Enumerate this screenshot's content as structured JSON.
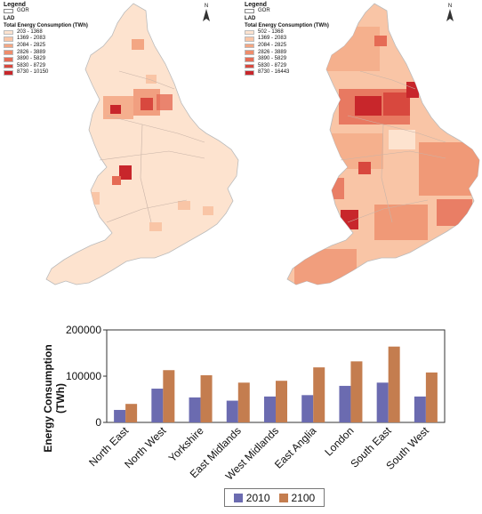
{
  "map_2010": {
    "legend_title": "Legend",
    "boundary_label": "GOR",
    "layer_label": "LAD",
    "scale_title": "Total Energy Consumption (TWh)",
    "classes": [
      "203 - 1368",
      "1369 - 2083",
      "2084 - 2825",
      "2826 - 3889",
      "3890 - 5829",
      "5830 - 8729",
      "8730 - 10150"
    ],
    "north_label": "N"
  },
  "map_2100": {
    "legend_title": "Legend",
    "boundary_label": "GOR",
    "layer_label": "LAD",
    "scale_title": "Total Energy Consumption (TWh)",
    "classes": [
      "502 - 1368",
      "1369 - 2083",
      "2084 - 2825",
      "2826 - 3889",
      "3890 - 5829",
      "5830 - 8729",
      "8730 - 16443"
    ],
    "north_label": "N"
  },
  "class_colors": [
    "#fde3cf",
    "#f9c5a6",
    "#f3a683",
    "#ee8d6c",
    "#e56b55",
    "#d8483e",
    "#c8262b"
  ],
  "chart_data": {
    "type": "bar",
    "ylabel": "Energy Consumption (TWh)",
    "ylim": [
      0,
      200000
    ],
    "yticks": [
      0,
      100000,
      200000
    ],
    "categories": [
      "North East",
      "North West",
      "Yorkshire",
      "East Midlands",
      "West Midlands",
      "East Anglia",
      "London",
      "South East",
      "South West"
    ],
    "series": [
      {
        "name": "2010",
        "color": "#6b6bb0",
        "values": [
          27000,
          73000,
          54000,
          47000,
          56000,
          59000,
          79000,
          86000,
          56000
        ]
      },
      {
        "name": "2100",
        "color": "#c47d4f",
        "values": [
          40000,
          113000,
          102000,
          86000,
          90000,
          119000,
          132000,
          164000,
          108000
        ]
      }
    ]
  }
}
